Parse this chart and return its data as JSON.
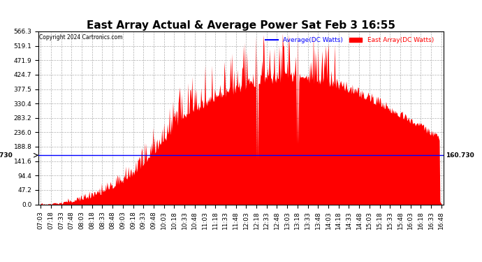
{
  "title": "East Array Actual & Average Power Sat Feb 3 16:55",
  "copyright": "Copyright 2024 Cartronics.com",
  "legend_avg": "Average(DC Watts)",
  "legend_east": "East Array(DC Watts)",
  "avg_line_value": 160.73,
  "avg_label": "160.730",
  "ymax": 566.3,
  "ymin": 0.0,
  "yticks": [
    0.0,
    47.2,
    94.4,
    141.6,
    188.8,
    236.0,
    283.2,
    330.4,
    377.5,
    424.7,
    471.9,
    519.1,
    566.3
  ],
  "fill_color": "#ff0000",
  "line_color": "#0000ff",
  "avg_legend_color": "#0000ff",
  "east_legend_color": "#ff0000",
  "background_color": "#ffffff",
  "grid_color": "#b0b0b0",
  "title_fontsize": 11,
  "tick_fontsize": 6.5,
  "xtick_labels": [
    "07:03",
    "07:18",
    "07:33",
    "07:48",
    "08:03",
    "08:18",
    "08:33",
    "08:48",
    "09:03",
    "09:18",
    "09:33",
    "09:48",
    "10:03",
    "10:18",
    "10:33",
    "10:48",
    "11:03",
    "11:18",
    "11:33",
    "11:48",
    "12:03",
    "12:18",
    "12:33",
    "12:48",
    "13:03",
    "13:18",
    "13:33",
    "13:48",
    "14:03",
    "14:18",
    "14:33",
    "14:48",
    "15:03",
    "15:18",
    "15:33",
    "15:48",
    "16:03",
    "16:18",
    "16:33",
    "16:48"
  ]
}
